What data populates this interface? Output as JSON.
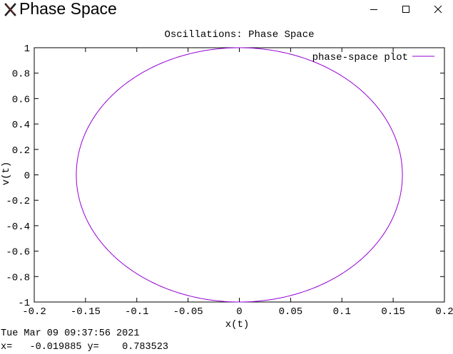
{
  "window": {
    "title": "Phase Space",
    "controls": {
      "minimize": "minimize-icon",
      "maximize": "maximize-icon",
      "close": "close-icon"
    }
  },
  "status": {
    "timestamp": "Tue Mar 09 09:37:56 2021",
    "coordinate_readout": "x=   -0.019885 y=    0.783523"
  },
  "chart_data": {
    "type": "line",
    "title": "Oscillations: Phase Space",
    "xlabel": "x(t)",
    "ylabel": "v(t)",
    "xlim": [
      -0.2,
      0.2
    ],
    "ylim": [
      -1,
      1
    ],
    "xticks": [
      "-0.2",
      "-0.15",
      "-0.1",
      "-0.05",
      "0",
      "0.05",
      "0.1",
      "0.15",
      "0.2"
    ],
    "yticks": [
      "1",
      "0.8",
      "0.6",
      "0.4",
      "0.2",
      "0",
      "-0.2",
      "-0.4",
      "-0.6",
      "-0.8",
      "-1"
    ],
    "xtick_values": [
      -0.2,
      -0.15,
      -0.1,
      -0.05,
      0,
      0.05,
      0.1,
      0.15,
      0.2
    ],
    "ytick_values": [
      1,
      0.8,
      0.6,
      0.4,
      0.2,
      0,
      -0.2,
      -0.4,
      -0.6,
      -0.8,
      -1
    ],
    "grid": false,
    "legend_position": "top-right",
    "series": [
      {
        "name": "phase-space plot",
        "color": "#9400d3",
        "amplitude_x": 0.159,
        "amplitude_v": 1.0
      }
    ]
  }
}
